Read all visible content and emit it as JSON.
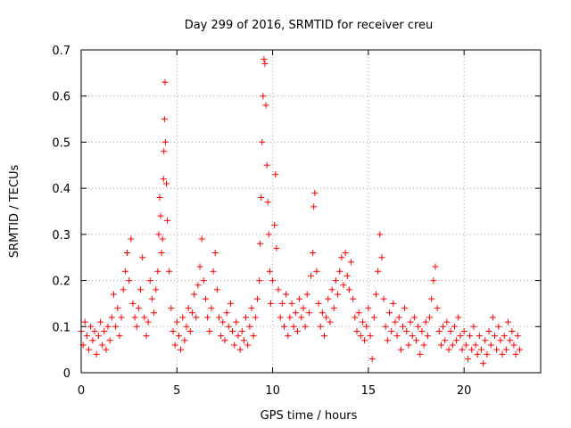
{
  "chart_data": {
    "type": "scatter",
    "title": "Day 299 of 2016, SRMTID for receiver creu",
    "xlabel": "GPS time / hours",
    "ylabel": "SRMTID / TECUs",
    "xlim": [
      0,
      24
    ],
    "ylim": [
      0,
      0.7
    ],
    "xticks": [
      0,
      5,
      10,
      15,
      20
    ],
    "xtick_labels": [
      "0",
      "5",
      "10",
      "15",
      "20"
    ],
    "yticks": [
      0,
      0.1,
      0.2,
      0.3,
      0.4,
      0.5,
      0.6,
      0.7
    ],
    "ytick_labels": [
      "0",
      "0.1",
      "0.2",
      "0.3",
      "0.4",
      "0.5",
      "0.6",
      "0.7"
    ],
    "grid": true,
    "marker": "+",
    "colors": {
      "series": "#ff0000",
      "grid": "#a0a0a0",
      "axis": "#000000"
    },
    "series": [
      {
        "name": "SRMTID",
        "points": [
          [
            0.0,
            0.09
          ],
          [
            0.1,
            0.06
          ],
          [
            0.2,
            0.11
          ],
          [
            0.3,
            0.08
          ],
          [
            0.4,
            0.05
          ],
          [
            0.5,
            0.1
          ],
          [
            0.6,
            0.07
          ],
          [
            0.7,
            0.09
          ],
          [
            0.8,
            0.04
          ],
          [
            0.9,
            0.08
          ],
          [
            1.0,
            0.11
          ],
          [
            1.1,
            0.06
          ],
          [
            1.2,
            0.09
          ],
          [
            1.3,
            0.05
          ],
          [
            1.4,
            0.1
          ],
          [
            1.5,
            0.07
          ],
          [
            1.6,
            0.12
          ],
          [
            1.7,
            0.17
          ],
          [
            1.8,
            0.1
          ],
          [
            1.9,
            0.14
          ],
          [
            2.0,
            0.08
          ],
          [
            2.1,
            0.12
          ],
          [
            2.2,
            0.18
          ],
          [
            2.3,
            0.22
          ],
          [
            2.4,
            0.26
          ],
          [
            2.5,
            0.2
          ],
          [
            2.6,
            0.29
          ],
          [
            2.7,
            0.15
          ],
          [
            2.8,
            0.12
          ],
          [
            2.9,
            0.1
          ],
          [
            3.0,
            0.14
          ],
          [
            3.1,
            0.18
          ],
          [
            3.2,
            0.25
          ],
          [
            3.3,
            0.12
          ],
          [
            3.4,
            0.08
          ],
          [
            3.5,
            0.11
          ],
          [
            3.6,
            0.2
          ],
          [
            3.7,
            0.16
          ],
          [
            3.8,
            0.13
          ],
          [
            3.9,
            0.18
          ],
          [
            4.0,
            0.22
          ],
          [
            4.05,
            0.3
          ],
          [
            4.1,
            0.38
          ],
          [
            4.15,
            0.34
          ],
          [
            4.2,
            0.26
          ],
          [
            4.25,
            0.29
          ],
          [
            4.3,
            0.42
          ],
          [
            4.32,
            0.48
          ],
          [
            4.35,
            0.55
          ],
          [
            4.38,
            0.63
          ],
          [
            4.4,
            0.5
          ],
          [
            4.45,
            0.41
          ],
          [
            4.5,
            0.33
          ],
          [
            4.6,
            0.22
          ],
          [
            4.7,
            0.14
          ],
          [
            4.8,
            0.09
          ],
          [
            4.9,
            0.06
          ],
          [
            5.0,
            0.11
          ],
          [
            5.1,
            0.08
          ],
          [
            5.2,
            0.05
          ],
          [
            5.3,
            0.12
          ],
          [
            5.4,
            0.07
          ],
          [
            5.5,
            0.1
          ],
          [
            5.6,
            0.14
          ],
          [
            5.7,
            0.09
          ],
          [
            5.8,
            0.13
          ],
          [
            5.9,
            0.17
          ],
          [
            6.0,
            0.12
          ],
          [
            6.1,
            0.19
          ],
          [
            6.2,
            0.23
          ],
          [
            6.3,
            0.29
          ],
          [
            6.4,
            0.2
          ],
          [
            6.5,
            0.16
          ],
          [
            6.6,
            0.12
          ],
          [
            6.7,
            0.09
          ],
          [
            6.8,
            0.14
          ],
          [
            6.9,
            0.22
          ],
          [
            7.0,
            0.26
          ],
          [
            7.1,
            0.18
          ],
          [
            7.2,
            0.12
          ],
          [
            7.3,
            0.08
          ],
          [
            7.4,
            0.11
          ],
          [
            7.5,
            0.07
          ],
          [
            7.6,
            0.13
          ],
          [
            7.7,
            0.1
          ],
          [
            7.8,
            0.15
          ],
          [
            7.9,
            0.09
          ],
          [
            8.0,
            0.06
          ],
          [
            8.1,
            0.11
          ],
          [
            8.2,
            0.08
          ],
          [
            8.3,
            0.05
          ],
          [
            8.4,
            0.09
          ],
          [
            8.5,
            0.07
          ],
          [
            8.6,
            0.12
          ],
          [
            8.7,
            0.06
          ],
          [
            8.8,
            0.1
          ],
          [
            8.9,
            0.14
          ],
          [
            9.0,
            0.08
          ],
          [
            9.1,
            0.12
          ],
          [
            9.2,
            0.16
          ],
          [
            9.3,
            0.2
          ],
          [
            9.35,
            0.28
          ],
          [
            9.4,
            0.38
          ],
          [
            9.45,
            0.5
          ],
          [
            9.5,
            0.6
          ],
          [
            9.55,
            0.68
          ],
          [
            9.6,
            0.67
          ],
          [
            9.65,
            0.58
          ],
          [
            9.7,
            0.45
          ],
          [
            9.75,
            0.37
          ],
          [
            9.8,
            0.3
          ],
          [
            9.85,
            0.22
          ],
          [
            9.9,
            0.15
          ],
          [
            10.0,
            0.2
          ],
          [
            10.1,
            0.32
          ],
          [
            10.15,
            0.43
          ],
          [
            10.2,
            0.27
          ],
          [
            10.3,
            0.18
          ],
          [
            10.4,
            0.12
          ],
          [
            10.5,
            0.15
          ],
          [
            10.6,
            0.1
          ],
          [
            10.7,
            0.17
          ],
          [
            10.8,
            0.08
          ],
          [
            10.9,
            0.12
          ],
          [
            11.0,
            0.15
          ],
          [
            11.1,
            0.1
          ],
          [
            11.2,
            0.13
          ],
          [
            11.3,
            0.09
          ],
          [
            11.4,
            0.16
          ],
          [
            11.5,
            0.12
          ],
          [
            11.6,
            0.14
          ],
          [
            11.7,
            0.1
          ],
          [
            11.8,
            0.17
          ],
          [
            11.9,
            0.13
          ],
          [
            12.0,
            0.21
          ],
          [
            12.1,
            0.26
          ],
          [
            12.15,
            0.36
          ],
          [
            12.2,
            0.39
          ],
          [
            12.3,
            0.22
          ],
          [
            12.4,
            0.15
          ],
          [
            12.5,
            0.1
          ],
          [
            12.6,
            0.13
          ],
          [
            12.7,
            0.08
          ],
          [
            12.8,
            0.12
          ],
          [
            12.9,
            0.16
          ],
          [
            13.0,
            0.11
          ],
          [
            13.1,
            0.18
          ],
          [
            13.2,
            0.14
          ],
          [
            13.3,
            0.2
          ],
          [
            13.4,
            0.17
          ],
          [
            13.5,
            0.22
          ],
          [
            13.6,
            0.25
          ],
          [
            13.7,
            0.19
          ],
          [
            13.8,
            0.26
          ],
          [
            13.9,
            0.21
          ],
          [
            14.0,
            0.18
          ],
          [
            14.1,
            0.24
          ],
          [
            14.2,
            0.16
          ],
          [
            14.3,
            0.12
          ],
          [
            14.4,
            0.09
          ],
          [
            14.5,
            0.13
          ],
          [
            14.6,
            0.08
          ],
          [
            14.7,
            0.11
          ],
          [
            14.8,
            0.07
          ],
          [
            14.9,
            0.1
          ],
          [
            15.0,
            0.14
          ],
          [
            15.1,
            0.08
          ],
          [
            15.2,
            0.03
          ],
          [
            15.3,
            0.12
          ],
          [
            15.4,
            0.17
          ],
          [
            15.5,
            0.22
          ],
          [
            15.6,
            0.3
          ],
          [
            15.7,
            0.25
          ],
          [
            15.8,
            0.16
          ],
          [
            15.9,
            0.1
          ],
          [
            16.0,
            0.07
          ],
          [
            16.1,
            0.13
          ],
          [
            16.2,
            0.09
          ],
          [
            16.3,
            0.15
          ],
          [
            16.4,
            0.11
          ],
          [
            16.5,
            0.08
          ],
          [
            16.6,
            0.12
          ],
          [
            16.7,
            0.05
          ],
          [
            16.8,
            0.1
          ],
          [
            16.9,
            0.14
          ],
          [
            17.0,
            0.09
          ],
          [
            17.1,
            0.06
          ],
          [
            17.2,
            0.11
          ],
          [
            17.3,
            0.08
          ],
          [
            17.4,
            0.12
          ],
          [
            17.5,
            0.07
          ],
          [
            17.6,
            0.1
          ],
          [
            17.7,
            0.04
          ],
          [
            17.8,
            0.09
          ],
          [
            17.9,
            0.06
          ],
          [
            18.0,
            0.11
          ],
          [
            18.1,
            0.08
          ],
          [
            18.2,
            0.12
          ],
          [
            18.3,
            0.16
          ],
          [
            18.4,
            0.2
          ],
          [
            18.5,
            0.23
          ],
          [
            18.6,
            0.14
          ],
          [
            18.7,
            0.09
          ],
          [
            18.8,
            0.06
          ],
          [
            18.9,
            0.1
          ],
          [
            19.0,
            0.07
          ],
          [
            19.1,
            0.11
          ],
          [
            19.2,
            0.05
          ],
          [
            19.3,
            0.09
          ],
          [
            19.4,
            0.06
          ],
          [
            19.5,
            0.1
          ],
          [
            19.6,
            0.07
          ],
          [
            19.7,
            0.12
          ],
          [
            19.8,
            0.08
          ],
          [
            19.9,
            0.05
          ],
          [
            20.0,
            0.09
          ],
          [
            20.1,
            0.06
          ],
          [
            20.2,
            0.03
          ],
          [
            20.3,
            0.08
          ],
          [
            20.4,
            0.05
          ],
          [
            20.5,
            0.1
          ],
          [
            20.6,
            0.06
          ],
          [
            20.7,
            0.04
          ],
          [
            20.8,
            0.08
          ],
          [
            20.9,
            0.05
          ],
          [
            21.0,
            0.02
          ],
          [
            21.1,
            0.07
          ],
          [
            21.2,
            0.04
          ],
          [
            21.3,
            0.09
          ],
          [
            21.4,
            0.06
          ],
          [
            21.5,
            0.12
          ],
          [
            21.6,
            0.08
          ],
          [
            21.7,
            0.05
          ],
          [
            21.8,
            0.1
          ],
          [
            21.9,
            0.07
          ],
          [
            22.0,
            0.04
          ],
          [
            22.1,
            0.08
          ],
          [
            22.2,
            0.05
          ],
          [
            22.3,
            0.11
          ],
          [
            22.4,
            0.07
          ],
          [
            22.5,
            0.09
          ],
          [
            22.6,
            0.06
          ],
          [
            22.7,
            0.04
          ],
          [
            22.8,
            0.08
          ],
          [
            22.9,
            0.05
          ]
        ]
      }
    ]
  }
}
